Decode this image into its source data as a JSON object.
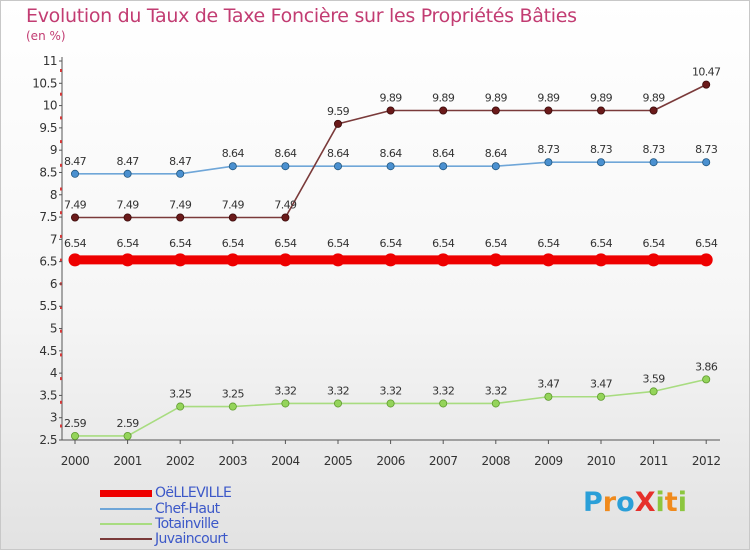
{
  "title": "Evolution du Taux de Taxe Foncière sur les Propriétés Bâties",
  "subtitle": "(en %)",
  "logo": {
    "text": "ProXiti",
    "letters": [
      {
        "ch": "P",
        "color": "#2a9fd8"
      },
      {
        "ch": "r",
        "color": "#f08a1c"
      },
      {
        "ch": "o",
        "color": "#2a9fd8"
      },
      {
        "ch": "X",
        "color": "#e6302b"
      },
      {
        "ch": "i",
        "color": "#8cc63f"
      },
      {
        "ch": "t",
        "color": "#f08a1c"
      },
      {
        "ch": "i",
        "color": "#8cc63f"
      }
    ]
  },
  "chart_data": {
    "type": "line",
    "title": "Evolution du Taux de Taxe Foncière sur les Propriétés Bâties",
    "ylabel": "(en %)",
    "xlabel": "",
    "categories": [
      "2000",
      "2001",
      "2002",
      "2003",
      "2004",
      "2005",
      "2006",
      "2007",
      "2008",
      "2009",
      "2010",
      "2011",
      "2012"
    ],
    "ylim": [
      2.5,
      11
    ],
    "yticks": [
      2.5,
      3,
      3.5,
      4,
      4.5,
      5,
      5.5,
      6,
      6.5,
      7,
      7.5,
      8,
      8.5,
      9,
      9.5,
      10,
      10.5,
      11
    ],
    "ytick_labels": [
      "2.5",
      "3",
      "3.5",
      "4",
      "4.5",
      "5",
      "5.5",
      "6",
      "6.5",
      "7",
      "7.5",
      "8",
      "8.5",
      "9",
      "9.5",
      "10",
      "10.5",
      "11"
    ],
    "grid": false,
    "legend_position": "bottom-left",
    "series": [
      {
        "name": "OëLLEVILLE",
        "color": "#ee0000",
        "marker_fill": "#ee0000",
        "marker_stroke": "#ee0000",
        "highlight": true,
        "values": [
          6.54,
          6.54,
          6.54,
          6.54,
          6.54,
          6.54,
          6.54,
          6.54,
          6.54,
          6.54,
          6.54,
          6.54,
          6.54
        ],
        "labels": [
          "6.54",
          "6.54",
          "6.54",
          "6.54",
          "6.54",
          "6.54",
          "6.54",
          "6.54",
          "6.54",
          "6.54",
          "6.54",
          "6.54",
          "6.54"
        ]
      },
      {
        "name": "Chef-Haut",
        "color": "#6fa6d8",
        "marker_fill": "#4a90d0",
        "marker_stroke": "#22577f",
        "highlight": false,
        "values": [
          8.47,
          8.47,
          8.47,
          8.64,
          8.64,
          8.64,
          8.64,
          8.64,
          8.64,
          8.73,
          8.73,
          8.73,
          8.73
        ],
        "labels": [
          "8.47",
          "8.47",
          "8.47",
          "8.64",
          "8.64",
          "8.64",
          "8.64",
          "8.64",
          "8.64",
          "8.73",
          "8.73",
          "8.73",
          "8.73"
        ]
      },
      {
        "name": "Totainville",
        "color": "#a8dc80",
        "marker_fill": "#94d45a",
        "marker_stroke": "#5e9a2e",
        "highlight": false,
        "values": [
          2.59,
          2.59,
          3.25,
          3.25,
          3.32,
          3.32,
          3.32,
          3.32,
          3.32,
          3.47,
          3.47,
          3.59,
          3.86
        ],
        "labels": [
          "2.59",
          "2.59",
          "3.25",
          "3.25",
          "3.32",
          "3.32",
          "3.32",
          "3.32",
          "3.32",
          "3.47",
          "3.47",
          "3.59",
          "3.86"
        ]
      },
      {
        "name": "Juvaincourt",
        "color": "#7a3a3a",
        "marker_fill": "#6b1a1a",
        "marker_stroke": "#3a0a0a",
        "highlight": false,
        "values": [
          7.49,
          7.49,
          7.49,
          7.49,
          7.49,
          9.59,
          9.89,
          9.89,
          9.89,
          9.89,
          9.89,
          9.89,
          10.47
        ],
        "labels": [
          "7.49",
          "7.49",
          "7.49",
          "7.49",
          "7.49",
          "9.59",
          "9.89",
          "9.89",
          "9.89",
          "9.89",
          "9.89",
          "9.89",
          "10.47"
        ]
      }
    ]
  }
}
